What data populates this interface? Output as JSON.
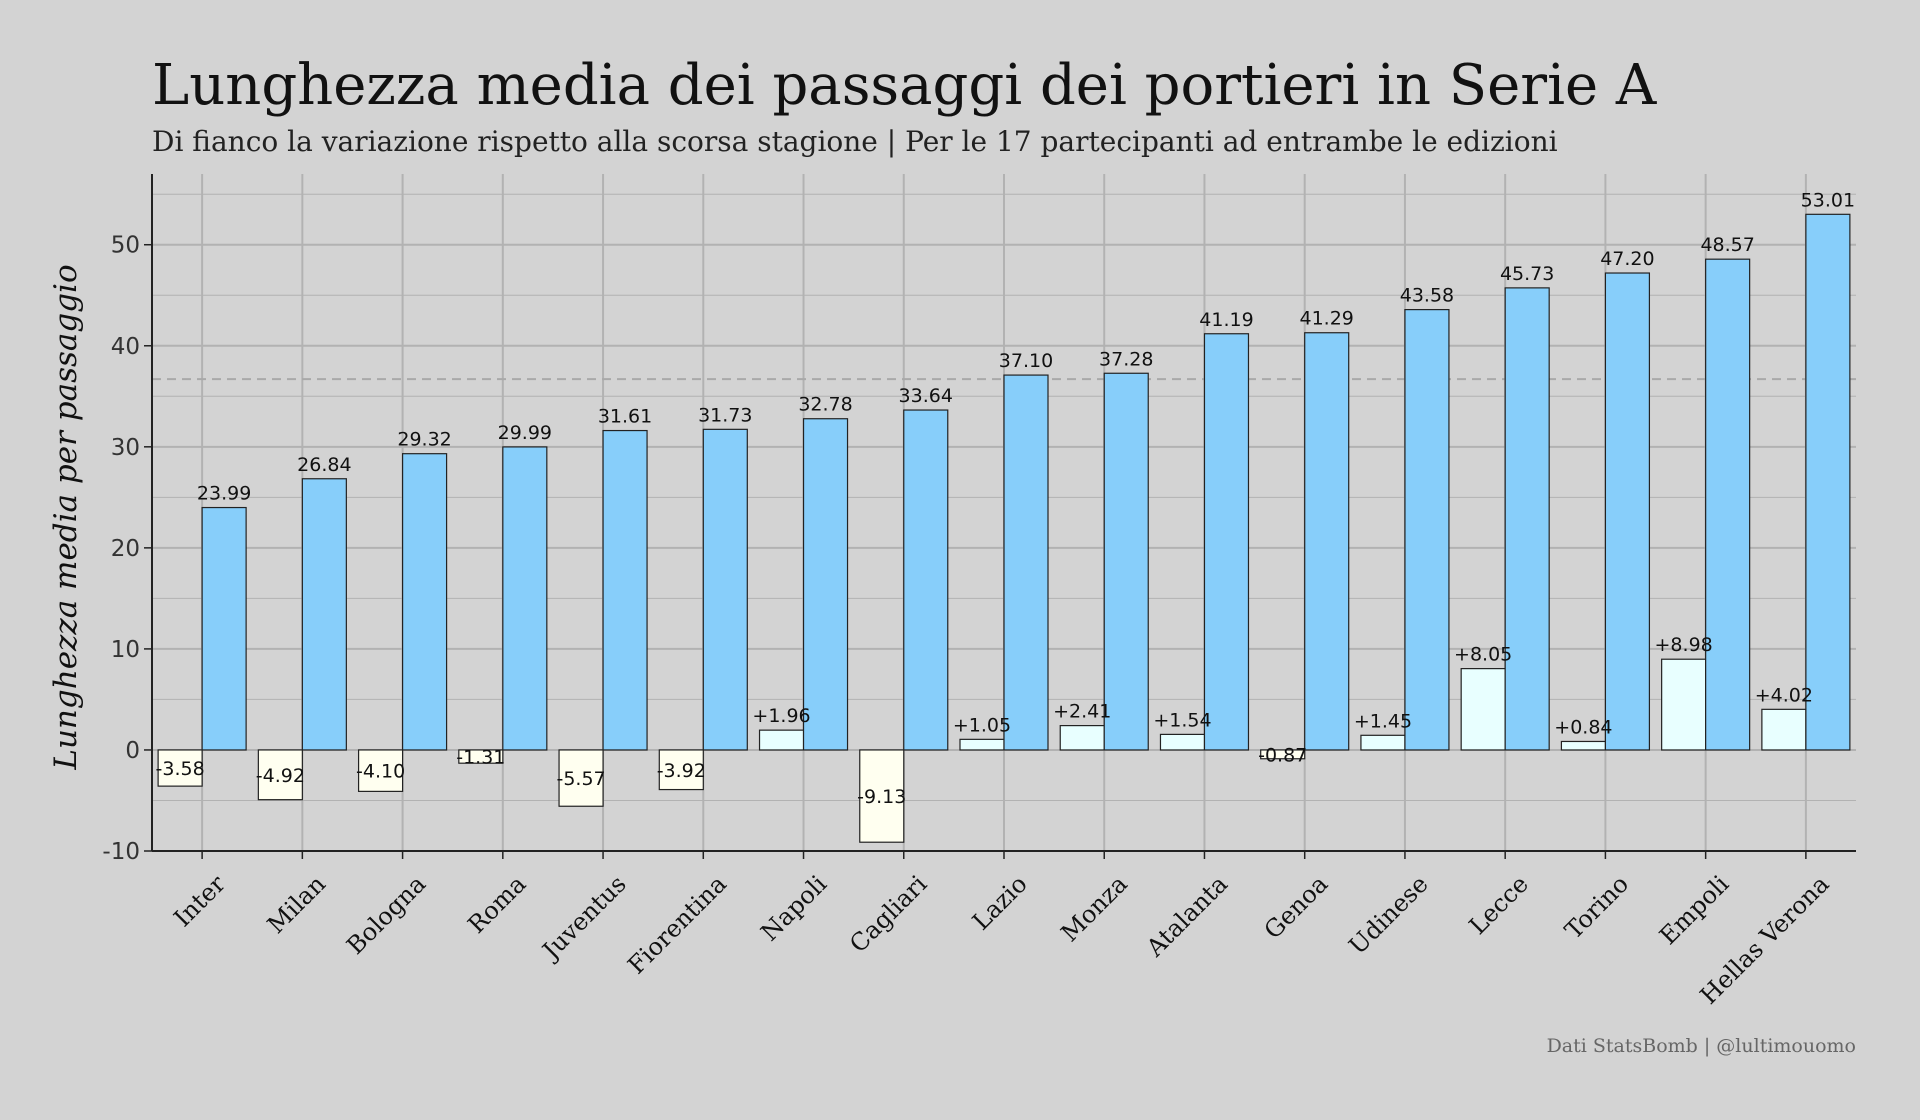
{
  "chart_data": {
    "type": "bar",
    "title": "Lunghezza media dei passaggi dei portieri in Serie A",
    "subtitle": "Di fianco la variazione rispetto alla scorsa stagione | Per le 17 partecipanti ad entrambe le edizioni",
    "ylabel": "Lunghezza media per passaggio",
    "xlabel": "",
    "credit": "Dati StatsBomb | @lultimouomo",
    "categories": [
      "Inter",
      "Milan",
      "Bologna",
      "Roma",
      "Juventus",
      "Fiorentina",
      "Napoli",
      "Cagliari",
      "Lazio",
      "Monza",
      "Atalanta",
      "Genoa",
      "Udinese",
      "Lecce",
      "Torino",
      "Empoli",
      "Hellas Verona"
    ],
    "series": [
      {
        "values": [
          -3.58,
          -4.92,
          -4.1,
          -1.31,
          -5.57,
          -3.92,
          1.96,
          -9.13,
          1.05,
          2.41,
          1.54,
          -0.87,
          1.45,
          8.05,
          0.84,
          8.98,
          4.02
        ],
        "labels": [
          "-3.58",
          "-4.92",
          "-4.10",
          "-1.31",
          "-5.57",
          "-3.92",
          "+1.96",
          "-9.13",
          "+1.05",
          "+2.41",
          "+1.54",
          "-0.87",
          "+1.45",
          "+8.05",
          "+0.84",
          "+8.98",
          "+4.02"
        ],
        "color_positive": "#e8ffff",
        "color_negative": "#fffff0"
      },
      {
        "values": [
          23.99,
          26.84,
          29.32,
          29.99,
          31.61,
          31.73,
          32.78,
          33.64,
          37.1,
          37.28,
          41.19,
          41.29,
          43.58,
          45.73,
          47.2,
          48.57,
          53.01
        ],
        "labels": [
          "23.99",
          "26.84",
          "29.32",
          "29.99",
          "31.61",
          "31.73",
          "32.78",
          "33.64",
          "37.10",
          "37.28",
          "41.19",
          "41.29",
          "43.58",
          "45.73",
          "47.20",
          "48.57",
          "53.01"
        ],
        "color": "#87cefa"
      }
    ],
    "reference_line": 36.7,
    "ylim": [
      -10,
      57
    ],
    "yticks": [
      -10,
      0,
      10,
      20,
      30,
      40,
      50
    ],
    "grid": true,
    "legend": "none",
    "colors": {
      "background": "#d3d3d3",
      "grid": "#b2b2b2",
      "edge": "#222222"
    }
  }
}
